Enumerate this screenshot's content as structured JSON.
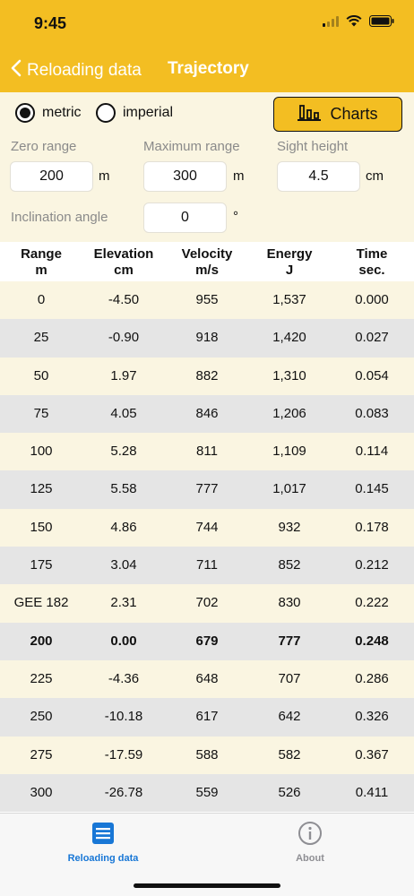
{
  "status_bar": {
    "time": "9:45"
  },
  "nav": {
    "back_label": "Reloading data",
    "title": "Trajectory"
  },
  "units": {
    "options": [
      "metric",
      "imperial"
    ],
    "selected": "metric"
  },
  "charts_button": {
    "label": "Charts"
  },
  "fields": {
    "zero_range": {
      "label": "Zero range",
      "value": "200",
      "unit": "m"
    },
    "maximum_range": {
      "label": "Maximum range",
      "value": "300",
      "unit": "m"
    },
    "sight_height": {
      "label": "Sight height",
      "value": "4.5",
      "unit": "cm"
    },
    "inclination_angle": {
      "label": "Inclination angle",
      "value": "0",
      "unit": "°"
    }
  },
  "table": {
    "headers": [
      {
        "name": "Range",
        "unit": "m"
      },
      {
        "name": "Elevation",
        "unit": "cm"
      },
      {
        "name": "Velocity",
        "unit": "m/s"
      },
      {
        "name": "Energy",
        "unit": "J"
      },
      {
        "name": "Time",
        "unit": "sec."
      }
    ],
    "rows": [
      {
        "range": "0",
        "elevation": "-4.50",
        "velocity": "955",
        "energy": "1,537",
        "time": "0.000"
      },
      {
        "range": "25",
        "elevation": "-0.90",
        "velocity": "918",
        "energy": "1,420",
        "time": "0.027"
      },
      {
        "range": "50",
        "elevation": "1.97",
        "velocity": "882",
        "energy": "1,310",
        "time": "0.054"
      },
      {
        "range": "75",
        "elevation": "4.05",
        "velocity": "846",
        "energy": "1,206",
        "time": "0.083"
      },
      {
        "range": "100",
        "elevation": "5.28",
        "velocity": "811",
        "energy": "1,109",
        "time": "0.114"
      },
      {
        "range": "125",
        "elevation": "5.58",
        "velocity": "777",
        "energy": "1,017",
        "time": "0.145"
      },
      {
        "range": "150",
        "elevation": "4.86",
        "velocity": "744",
        "energy": "932",
        "time": "0.178"
      },
      {
        "range": "175",
        "elevation": "3.04",
        "velocity": "711",
        "energy": "852",
        "time": "0.212"
      },
      {
        "range": "GEE 182",
        "elevation": "2.31",
        "velocity": "702",
        "energy": "830",
        "time": "0.222"
      },
      {
        "range": "200",
        "elevation": "0.00",
        "velocity": "679",
        "energy": "777",
        "time": "0.248",
        "bold": true
      },
      {
        "range": "225",
        "elevation": "-4.36",
        "velocity": "648",
        "energy": "707",
        "time": "0.286"
      },
      {
        "range": "250",
        "elevation": "-10.18",
        "velocity": "617",
        "energy": "642",
        "time": "0.326"
      },
      {
        "range": "275",
        "elevation": "-17.59",
        "velocity": "588",
        "energy": "582",
        "time": "0.367"
      },
      {
        "range": "300",
        "elevation": "-26.78",
        "velocity": "559",
        "energy": "526",
        "time": "0.411"
      }
    ]
  },
  "tabs": [
    {
      "label": "Reloading data",
      "icon": "list-icon",
      "active": true
    },
    {
      "label": "About",
      "icon": "info-icon",
      "active": false
    }
  ],
  "colors": {
    "accent": "#f3be22",
    "tab_active": "#1877d6",
    "tab_inactive": "#8e8e93",
    "row_light": "#faf5e1",
    "row_dark": "#e5e5e5"
  }
}
